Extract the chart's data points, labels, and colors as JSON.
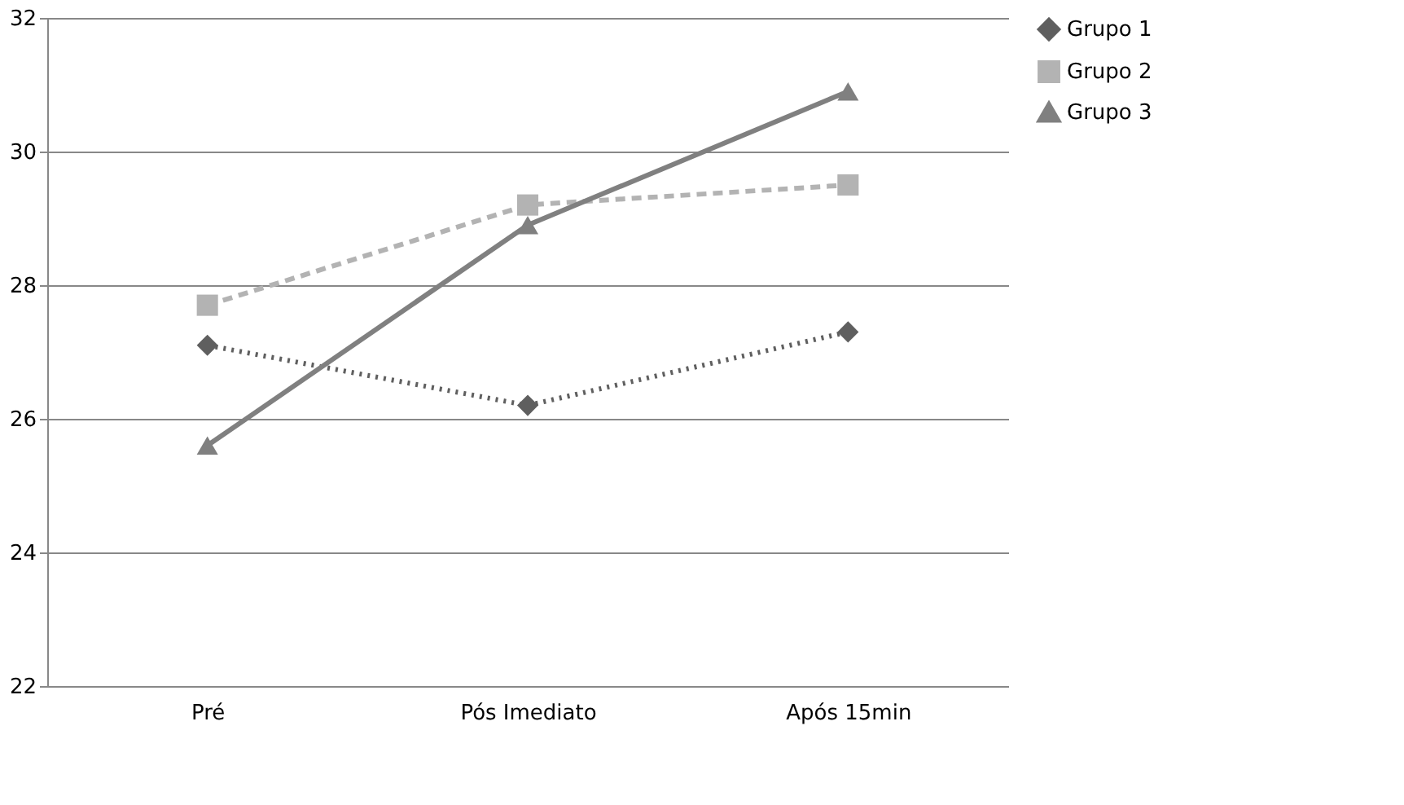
{
  "chart_data": {
    "type": "line",
    "categories": [
      "Pré",
      "Pós Imediato",
      "Após 15min"
    ],
    "series": [
      {
        "name": "Grupo 1",
        "color": "#5f5f5f",
        "marker": "diamond",
        "line_style": "dotted",
        "values": [
          27.1,
          26.2,
          27.3
        ]
      },
      {
        "name": "Grupo 2",
        "color": "#b3b3b3",
        "marker": "square",
        "line_style": "dashed",
        "values": [
          27.7,
          29.2,
          29.5
        ]
      },
      {
        "name": "Grupo 3",
        "color": "#808080",
        "marker": "triangle",
        "line_style": "solid",
        "values": [
          25.6,
          28.9,
          30.9
        ]
      }
    ],
    "ylim": [
      22,
      32
    ],
    "yticks": [
      22,
      24,
      26,
      28,
      30,
      32
    ],
    "grid": "y",
    "legend": "right"
  }
}
